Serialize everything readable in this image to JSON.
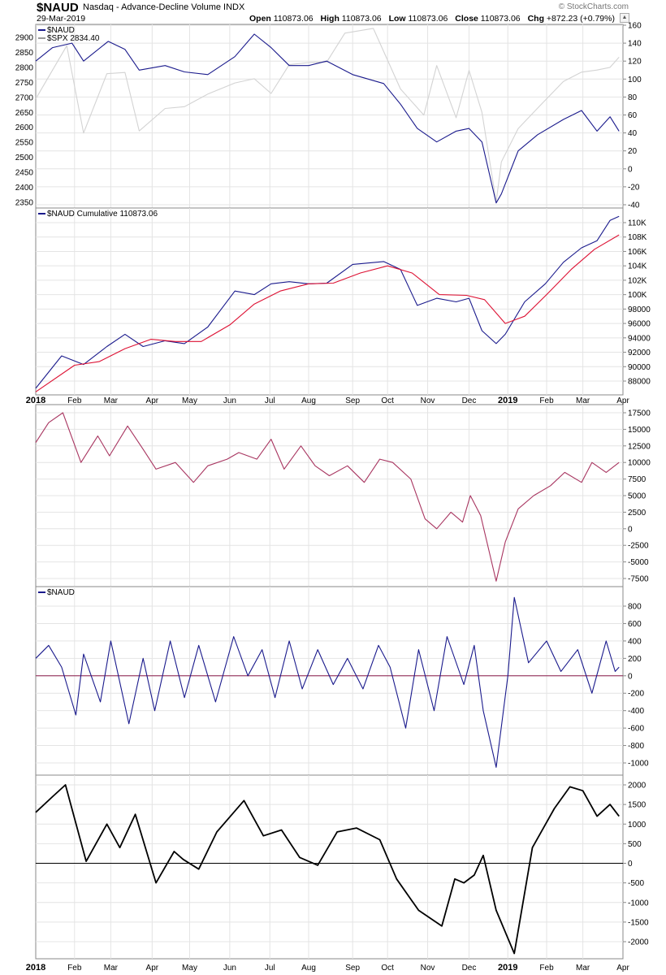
{
  "header": {
    "symbol": "$NAUD",
    "name": "Nasdaq - Advance-Decline Volume INDX",
    "date": "29-Mar-2019",
    "open_label": "Open",
    "open": "110873.06",
    "high_label": "High",
    "high": "110873.06",
    "low_label": "Low",
    "low": "110873.06",
    "close_label": "Close",
    "close": "110873.06",
    "chg_label": "Chg",
    "chg": "+872.23 (+0.79%)",
    "brand": "© StockCharts.com"
  },
  "x_axis_labels": [
    "2018",
    "Feb",
    "Mar",
    "Apr",
    "May",
    "Jun",
    "Jul",
    "Aug",
    "Sep",
    "Oct",
    "Nov",
    "Dec",
    "2019",
    "Feb",
    "Mar",
    "Apr"
  ],
  "colors": {
    "navy": "#1a1a8c",
    "red": "#dd1133",
    "gray": "#d3d3d3",
    "maroon": "#a83560",
    "black": "#000000",
    "grid": "#e4e4e4",
    "zero": "#8b1a4a"
  },
  "chart_data": [
    {
      "type": "line",
      "legend": [
        "$NAUD",
        "$SPX 2834.40"
      ],
      "left_axis_ticks": [
        "2900",
        "2850",
        "2800",
        "2750",
        "2700",
        "2650",
        "2600",
        "2550",
        "2500",
        "2450",
        "2400",
        "2350"
      ],
      "right_axis_ticks": [
        "160",
        "140",
        "120",
        "100",
        "80",
        "60",
        "40",
        "20",
        "0",
        "-20",
        "-40"
      ],
      "series": [
        {
          "name": "$NAUD",
          "color": "#1a1a8c",
          "axis": "right",
          "x": [
            "2018-01-02",
            "2018-01-15",
            "2018-01-30",
            "2018-02-08",
            "2018-02-27",
            "2018-03-12",
            "2018-03-23",
            "2018-04-12",
            "2018-04-27",
            "2018-05-15",
            "2018-06-05",
            "2018-06-20",
            "2018-07-03",
            "2018-07-17",
            "2018-08-01",
            "2018-08-15",
            "2018-09-04",
            "2018-09-28",
            "2018-10-11",
            "2018-10-24",
            "2018-11-08",
            "2018-11-23",
            "2018-12-03",
            "2018-12-13",
            "2018-12-24",
            "2018-12-28",
            "2019-01-10",
            "2019-01-25",
            "2019-02-14",
            "2019-02-28",
            "2019-03-12",
            "2019-03-22",
            "2019-03-29"
          ],
          "values": [
            120,
            135,
            140,
            120,
            142,
            133,
            110,
            115,
            108,
            105,
            125,
            150,
            135,
            115,
            115,
            120,
            105,
            95,
            72,
            45,
            30,
            42,
            45,
            30,
            -38,
            -28,
            20,
            38,
            55,
            65,
            42,
            58,
            42
          ]
        },
        {
          "name": "$SPX",
          "color": "#d3d3d3",
          "axis": "left",
          "x": [
            "2018-01-02",
            "2018-01-26",
            "2018-02-08",
            "2018-02-26",
            "2018-03-12",
            "2018-03-23",
            "2018-04-12",
            "2018-04-27",
            "2018-05-15",
            "2018-06-05",
            "2018-06-20",
            "2018-07-03",
            "2018-07-17",
            "2018-08-01",
            "2018-08-15",
            "2018-08-29",
            "2018-09-20",
            "2018-10-11",
            "2018-10-29",
            "2018-11-08",
            "2018-11-23",
            "2018-12-03",
            "2018-12-13",
            "2018-12-24",
            "2018-12-28",
            "2019-01-10",
            "2019-01-25",
            "2019-02-14",
            "2019-02-28",
            "2019-03-12",
            "2019-03-22",
            "2019-03-29"
          ],
          "values": [
            2695,
            2872,
            2581,
            2779,
            2783,
            2588,
            2663,
            2669,
            2711,
            2748,
            2762,
            2713,
            2809,
            2816,
            2818,
            2914,
            2930,
            2728,
            2641,
            2806,
            2632,
            2790,
            2650,
            2351,
            2485,
            2596,
            2664,
            2753,
            2784,
            2791,
            2800,
            2834
          ]
        }
      ]
    },
    {
      "type": "line",
      "legend": [
        "$NAUD Cumulative 110873.06"
      ],
      "right_axis_ticks": [
        "110K",
        "108K",
        "106K",
        "104K",
        "102K",
        "100K",
        "98000",
        "96000",
        "94000",
        "92000",
        "90000",
        "88000"
      ],
      "series": [
        {
          "name": "$NAUD Cumulative",
          "color": "#1a1a8c",
          "x": [
            "2018-01-02",
            "2018-01-22",
            "2018-02-08",
            "2018-02-26",
            "2018-03-12",
            "2018-03-26",
            "2018-04-12",
            "2018-04-27",
            "2018-05-15",
            "2018-06-05",
            "2018-06-20",
            "2018-07-03",
            "2018-07-17",
            "2018-08-01",
            "2018-08-15",
            "2018-09-04",
            "2018-09-28",
            "2018-10-11",
            "2018-10-24",
            "2018-11-08",
            "2018-11-23",
            "2018-12-03",
            "2018-12-13",
            "2018-12-24",
            "2018-12-31",
            "2019-01-15",
            "2019-01-31",
            "2019-02-14",
            "2019-02-28",
            "2019-03-12",
            "2019-03-22",
            "2019-03-29"
          ],
          "values": [
            87000,
            91500,
            90300,
            92800,
            94500,
            92800,
            93600,
            93200,
            95500,
            100500,
            100000,
            101500,
            101800,
            101500,
            101600,
            104200,
            104600,
            103500,
            98500,
            99500,
            99000,
            99500,
            95000,
            93200,
            94500,
            99000,
            101500,
            104500,
            106500,
            107500,
            110300,
            110873
          ]
        },
        {
          "name": "Moving average",
          "color": "#dd1133",
          "x": [
            "2018-01-02",
            "2018-02-01",
            "2018-02-20",
            "2018-03-12",
            "2018-04-01",
            "2018-04-20",
            "2018-05-10",
            "2018-06-01",
            "2018-06-20",
            "2018-07-10",
            "2018-08-01",
            "2018-08-20",
            "2018-09-10",
            "2018-10-01",
            "2018-10-20",
            "2018-11-10",
            "2018-12-01",
            "2018-12-15",
            "2018-12-31",
            "2019-01-15",
            "2019-02-01",
            "2019-02-20",
            "2019-03-10",
            "2019-03-29"
          ],
          "values": [
            86500,
            90200,
            90700,
            92500,
            93800,
            93500,
            93500,
            95800,
            98700,
            100500,
            101500,
            101600,
            103000,
            104000,
            103000,
            100000,
            99900,
            99300,
            96000,
            97000,
            100000,
            103500,
            106300,
            108300
          ]
        }
      ]
    },
    {
      "type": "line",
      "right_axis_ticks": [
        "17500",
        "15000",
        "12500",
        "10000",
        "7500",
        "5000",
        "2500",
        "0",
        "-2500",
        "-5000",
        "-7500"
      ],
      "series": [
        {
          "name": "",
          "color": "#a83560",
          "x": [
            "2018-01-02",
            "2018-01-12",
            "2018-01-23",
            "2018-02-06",
            "2018-02-19",
            "2018-02-28",
            "2018-03-14",
            "2018-03-26",
            "2018-04-05",
            "2018-04-20",
            "2018-05-04",
            "2018-05-15",
            "2018-05-30",
            "2018-06-08",
            "2018-06-22",
            "2018-07-03",
            "2018-07-13",
            "2018-07-26",
            "2018-08-06",
            "2018-08-17",
            "2018-08-31",
            "2018-09-13",
            "2018-09-25",
            "2018-10-05",
            "2018-10-19",
            "2018-10-30",
            "2018-11-08",
            "2018-11-19",
            "2018-11-28",
            "2018-12-04",
            "2018-12-12",
            "2018-12-24",
            "2018-12-31",
            "2019-01-10",
            "2019-01-22",
            "2019-02-04",
            "2019-02-15",
            "2019-02-28",
            "2019-03-08",
            "2019-03-19",
            "2019-03-29"
          ],
          "values": [
            13000,
            16000,
            17500,
            10000,
            14000,
            11000,
            15500,
            12000,
            9000,
            10000,
            7000,
            9500,
            10500,
            11500,
            10500,
            13500,
            9000,
            12500,
            9500,
            8000,
            9500,
            7000,
            10500,
            10000,
            7500,
            1500,
            0,
            2500,
            1000,
            5000,
            2000,
            -7900,
            -2000,
            3000,
            5000,
            6500,
            8500,
            7000,
            10000,
            8500,
            10000
          ]
        }
      ]
    },
    {
      "type": "line",
      "legend": [
        "$NAUD"
      ],
      "right_axis_ticks": [
        "800",
        "600",
        "400",
        "200",
        "0",
        "-200",
        "-400",
        "-600",
        "-800",
        "-1000"
      ],
      "series": [
        {
          "name": "$NAUD",
          "color": "#1a1a8c",
          "x": [
            "2018-01-02",
            "2018-01-12",
            "2018-01-22",
            "2018-02-02",
            "2018-02-08",
            "2018-02-21",
            "2018-03-01",
            "2018-03-15",
            "2018-03-26",
            "2018-04-04",
            "2018-04-16",
            "2018-04-27",
            "2018-05-08",
            "2018-05-21",
            "2018-06-04",
            "2018-06-15",
            "2018-06-26",
            "2018-07-06",
            "2018-07-17",
            "2018-07-27",
            "2018-08-08",
            "2018-08-20",
            "2018-08-31",
            "2018-09-12",
            "2018-09-24",
            "2018-10-03",
            "2018-10-15",
            "2018-10-25",
            "2018-11-06",
            "2018-11-16",
            "2018-11-29",
            "2018-12-07",
            "2018-12-14",
            "2018-12-24",
            "2019-01-02",
            "2019-01-07",
            "2019-01-18",
            "2019-02-01",
            "2019-02-12",
            "2019-02-25",
            "2019-03-08",
            "2019-03-19",
            "2019-03-26",
            "2019-03-29"
          ],
          "values": [
            200,
            350,
            100,
            -450,
            250,
            -300,
            400,
            -550,
            200,
            -400,
            400,
            -250,
            350,
            -300,
            450,
            0,
            300,
            -250,
            400,
            -150,
            300,
            -100,
            200,
            -150,
            350,
            100,
            -600,
            300,
            -400,
            450,
            -100,
            350,
            -400,
            -1050,
            0,
            900,
            150,
            400,
            50,
            300,
            -200,
            400,
            50,
            100
          ]
        }
      ]
    },
    {
      "type": "line",
      "right_axis_ticks": [
        "2000",
        "1500",
        "1000",
        "500",
        "0",
        "-500",
        "-1000",
        "-1500",
        "-2000"
      ],
      "series": [
        {
          "name": "",
          "color": "#000000",
          "x": [
            "2018-01-02",
            "2018-01-15",
            "2018-01-25",
            "2018-02-10",
            "2018-02-26",
            "2018-03-08",
            "2018-03-20",
            "2018-04-05",
            "2018-04-19",
            "2018-04-26",
            "2018-05-08",
            "2018-05-22",
            "2018-06-12",
            "2018-06-27",
            "2018-07-11",
            "2018-07-25",
            "2018-08-08",
            "2018-08-23",
            "2018-09-07",
            "2018-09-25",
            "2018-10-08",
            "2018-10-25",
            "2018-11-12",
            "2018-11-22",
            "2018-11-29",
            "2018-12-07",
            "2018-12-14",
            "2018-12-24",
            "2019-01-07",
            "2019-01-21",
            "2019-02-07",
            "2019-02-19",
            "2019-03-01",
            "2019-03-12",
            "2019-03-22",
            "2019-03-29"
          ],
          "values": [
            1300,
            1700,
            2000,
            50,
            1000,
            400,
            1250,
            -500,
            300,
            100,
            -150,
            800,
            1600,
            700,
            850,
            150,
            -50,
            800,
            900,
            600,
            -400,
            -1200,
            -1600,
            -400,
            -500,
            -300,
            200,
            -1200,
            -2300,
            400,
            1400,
            1950,
            1850,
            1200,
            1500,
            1200
          ]
        }
      ]
    }
  ]
}
